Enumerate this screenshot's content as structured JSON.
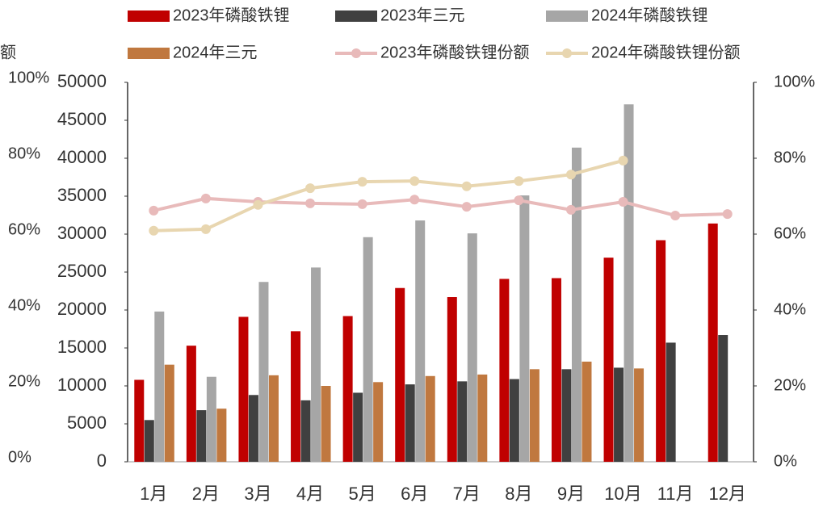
{
  "chart_data": {
    "type": "bar",
    "y_axis_title": "额",
    "categories": [
      "1月",
      "2月",
      "3月",
      "4月",
      "5月",
      "6月",
      "7月",
      "8月",
      "9月",
      "10月",
      "11月",
      "12月"
    ],
    "series": [
      {
        "name": "2023年磷酸铁锂",
        "type": "bar",
        "color": "#c00000",
        "values": [
          10800,
          15300,
          19100,
          17200,
          19200,
          22900,
          21700,
          24100,
          24200,
          26900,
          29200,
          31400
        ]
      },
      {
        "name": "2023年三元",
        "type": "bar",
        "color": "#404040",
        "values": [
          5500,
          6800,
          8800,
          8100,
          9100,
          10200,
          10600,
          10900,
          12200,
          12400,
          15700,
          16700
        ]
      },
      {
        "name": "2024年磷酸铁锂",
        "type": "bar",
        "color": "#a6a6a6",
        "values": [
          19800,
          11200,
          23700,
          25600,
          29600,
          31800,
          30100,
          35100,
          41400,
          47100,
          null,
          null
        ]
      },
      {
        "name": "2024年三元",
        "type": "bar",
        "color": "#c0783f",
        "values": [
          12800,
          7000,
          11400,
          10000,
          10500,
          11300,
          11500,
          12200,
          13200,
          12300,
          null,
          null
        ]
      },
      {
        "name": "2023年磷酸铁锂份额",
        "type": "line",
        "axis": "y2",
        "color": "#e8baba",
        "values": [
          66.2,
          69.4,
          68.5,
          68.1,
          67.9,
          69.1,
          67.2,
          68.9,
          66.4,
          68.5,
          64.9,
          65.3
        ]
      },
      {
        "name": "2024年磷酸铁锂份额",
        "type": "line",
        "axis": "y2",
        "color": "#e8d6b0",
        "values": [
          60.9,
          61.3,
          67.7,
          72.1,
          73.8,
          74.0,
          72.6,
          74.0,
          75.7,
          79.4,
          null,
          null
        ]
      }
    ],
    "ylim": [
      0,
      50000
    ],
    "yticks": [
      0,
      5000,
      10000,
      15000,
      20000,
      25000,
      30000,
      35000,
      40000,
      45000,
      50000
    ],
    "y2lim": [
      0,
      100
    ],
    "y2ticks": [
      {
        "value": 0,
        "label": "0%"
      },
      {
        "value": 20,
        "label": "20%"
      },
      {
        "value": 40,
        "label": "40%"
      },
      {
        "value": 60,
        "label": "60%"
      },
      {
        "value": 80,
        "label": "80%"
      },
      {
        "value": 100,
        "label": "100%"
      }
    ],
    "grid": false
  }
}
